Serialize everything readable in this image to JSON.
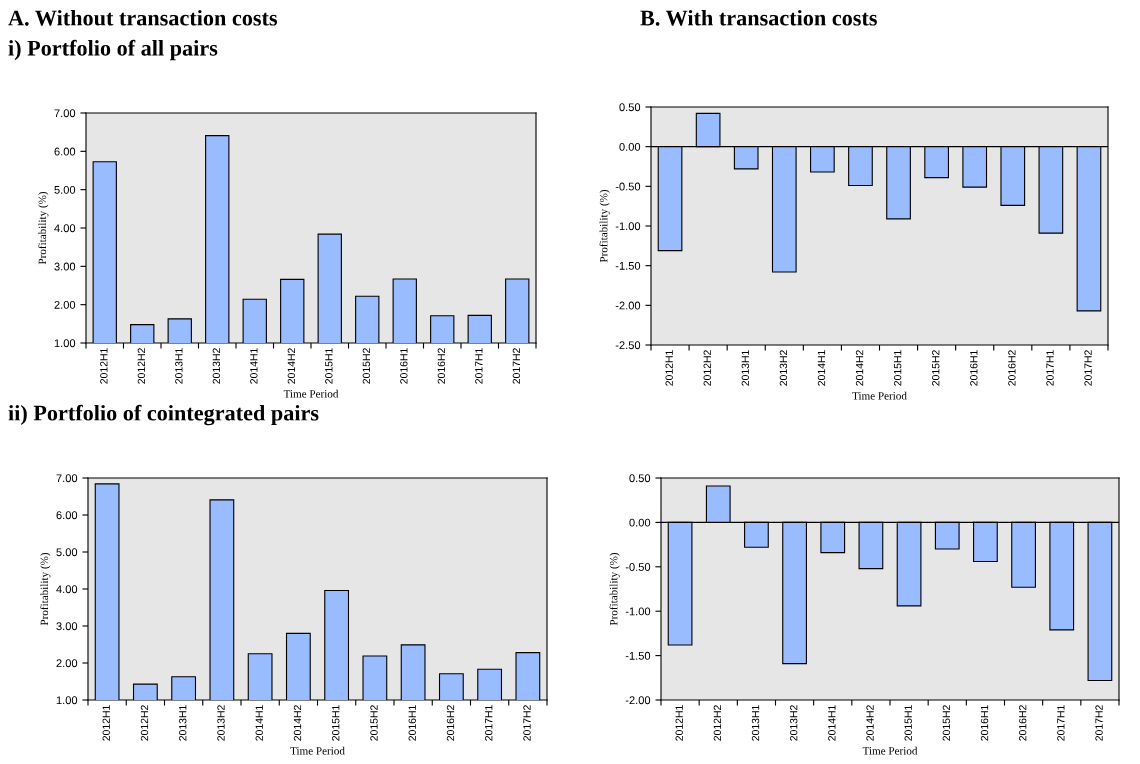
{
  "chart_data": [
    {
      "type": "bar",
      "title": "i) Portfolio of all pairs",
      "annotations": [
        "A. Without transaction costs"
      ],
      "xlabel": "Time Period",
      "ylabel": "Profitability (%)",
      "categories": [
        "2012H1",
        "2012H2",
        "2013H1",
        "2013H2",
        "2014H1",
        "2014H2",
        "2015H1",
        "2015H2",
        "2016H1",
        "2016H2",
        "2017H1",
        "2017H2"
      ],
      "values": [
        5.73,
        1.48,
        1.63,
        6.41,
        2.14,
        2.66,
        3.84,
        2.22,
        2.67,
        1.71,
        1.72,
        2.67
      ],
      "color": "#99bbff",
      "ylim": [
        1,
        7
      ],
      "yticks": [
        {
          "value": 1,
          "label": "1.00"
        },
        {
          "value": 2,
          "label": "2.00"
        },
        {
          "value": 3,
          "label": "3.00"
        },
        {
          "value": 4,
          "label": "4.00"
        },
        {
          "value": 5,
          "label": "5.00"
        },
        {
          "value": 6,
          "label": "6.00"
        },
        {
          "value": 7,
          "label": "7.00"
        }
      ],
      "grid": false,
      "legend": false
    },
    {
      "type": "bar",
      "annotations": [
        "B. With transaction costs"
      ],
      "xlabel": "Time Period",
      "ylabel": "Profitability (%)",
      "categories": [
        "2012H1",
        "2012H2",
        "2013H1",
        "2013H2",
        "2014H1",
        "2014H2",
        "2015H1",
        "2015H2",
        "2016H1",
        "2016H2",
        "2017H1",
        "2017H2"
      ],
      "values": [
        -1.31,
        0.42,
        -0.28,
        -1.58,
        -0.32,
        -0.49,
        -0.91,
        -0.39,
        -0.51,
        -0.74,
        -1.09,
        -2.07
      ],
      "color": "#99bbff",
      "ylim": [
        -2.5,
        0.5
      ],
      "yticks": [
        {
          "value": -2.5,
          "label": "-2.50"
        },
        {
          "value": -2,
          "label": "-2.00"
        },
        {
          "value": -1.5,
          "label": "-1.50"
        },
        {
          "value": -1,
          "label": "-1.00"
        },
        {
          "value": -0.5,
          "label": "-0.50"
        },
        {
          "value": 0,
          "label": "0.00"
        },
        {
          "value": 0.5,
          "label": "0.50"
        }
      ],
      "grid": false,
      "legend": false,
      "ref_lines": [
        {
          "axis": "y",
          "value": 0,
          "color": "#000000"
        }
      ]
    },
    {
      "type": "bar",
      "title": "ii) Portfolio of cointegrated pairs",
      "xlabel": "Time Period",
      "ylabel": "Profitability (%)",
      "categories": [
        "2012H1",
        "2012H2",
        "2013H1",
        "2013H2",
        "2014H1",
        "2014H2",
        "2015H1",
        "2015H2",
        "2016H1",
        "2016H2",
        "2017H1",
        "2017H2"
      ],
      "values": [
        6.84,
        1.43,
        1.63,
        6.41,
        2.25,
        2.8,
        3.96,
        2.19,
        2.49,
        1.71,
        1.83,
        2.28
      ],
      "color": "#99bbff",
      "ylim": [
        1,
        7
      ],
      "yticks": [
        {
          "value": 1,
          "label": "1.00"
        },
        {
          "value": 2,
          "label": "2.00"
        },
        {
          "value": 3,
          "label": "3.00"
        },
        {
          "value": 4,
          "label": "4.00"
        },
        {
          "value": 5,
          "label": "5.00"
        },
        {
          "value": 6,
          "label": "6.00"
        },
        {
          "value": 7,
          "label": "7.00"
        }
      ],
      "grid": false,
      "legend": false
    },
    {
      "type": "bar",
      "xlabel": "Time Period",
      "ylabel": "Profitability (%)",
      "categories": [
        "2012H1",
        "2012H2",
        "2013H1",
        "2013H2",
        "2014H1",
        "2014H2",
        "2015H1",
        "2015H2",
        "2016H1",
        "2016H2",
        "2017H1",
        "2017H2"
      ],
      "values": [
        -1.38,
        0.41,
        -0.28,
        -1.59,
        -0.34,
        -0.52,
        -0.94,
        -0.3,
        -0.44,
        -0.73,
        -1.21,
        -1.78
      ],
      "color": "#99bbff",
      "ylim": [
        -2,
        0.5
      ],
      "yticks": [
        {
          "value": -2,
          "label": "-2.00"
        },
        {
          "value": -1.5,
          "label": "-1.50"
        },
        {
          "value": -1,
          "label": "-1.00"
        },
        {
          "value": -0.5,
          "label": "-0.50"
        },
        {
          "value": 0,
          "label": "0.00"
        },
        {
          "value": 0.5,
          "label": "0.50"
        }
      ],
      "grid": false,
      "legend": false,
      "ref_lines": [
        {
          "axis": "y",
          "value": 0,
          "color": "#000000"
        }
      ]
    }
  ]
}
